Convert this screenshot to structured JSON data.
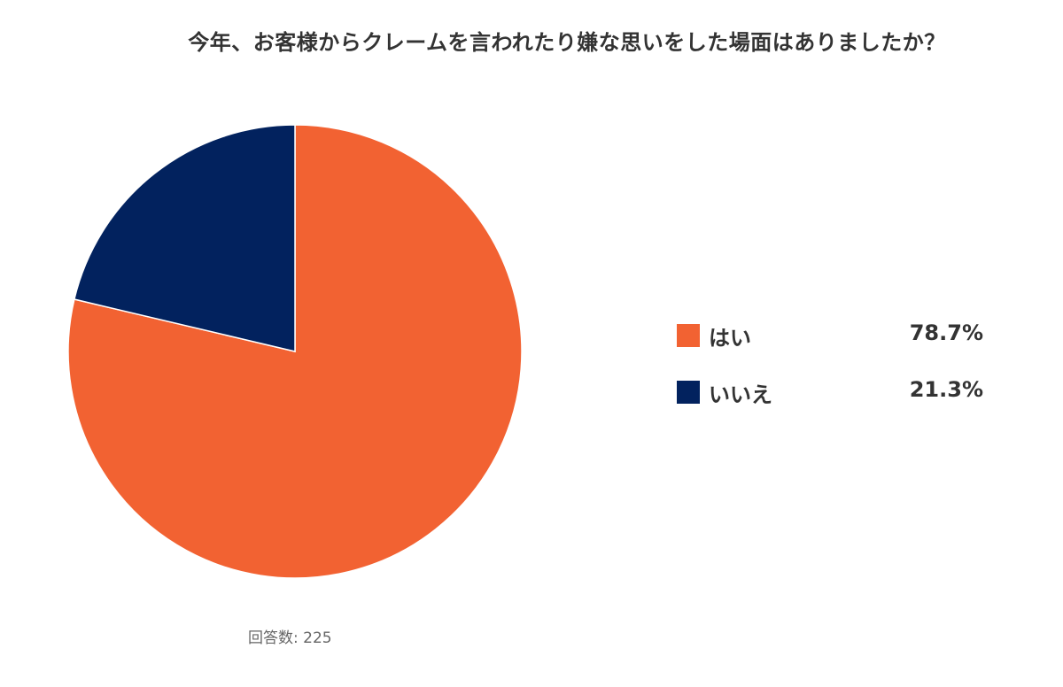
{
  "chart_data": {
    "type": "pie",
    "title": "今年、お客様からクレームを言われたり嫌な思いをした場面はありましたか？",
    "series": [
      {
        "name": "はい",
        "value": 78.7,
        "label": "78.7%",
        "color": "#F26232"
      },
      {
        "name": "いいえ",
        "value": 21.3,
        "label": "21.3%",
        "color": "#02225E"
      }
    ],
    "legend_position": "right"
  },
  "footnote": "回答数: 225"
}
